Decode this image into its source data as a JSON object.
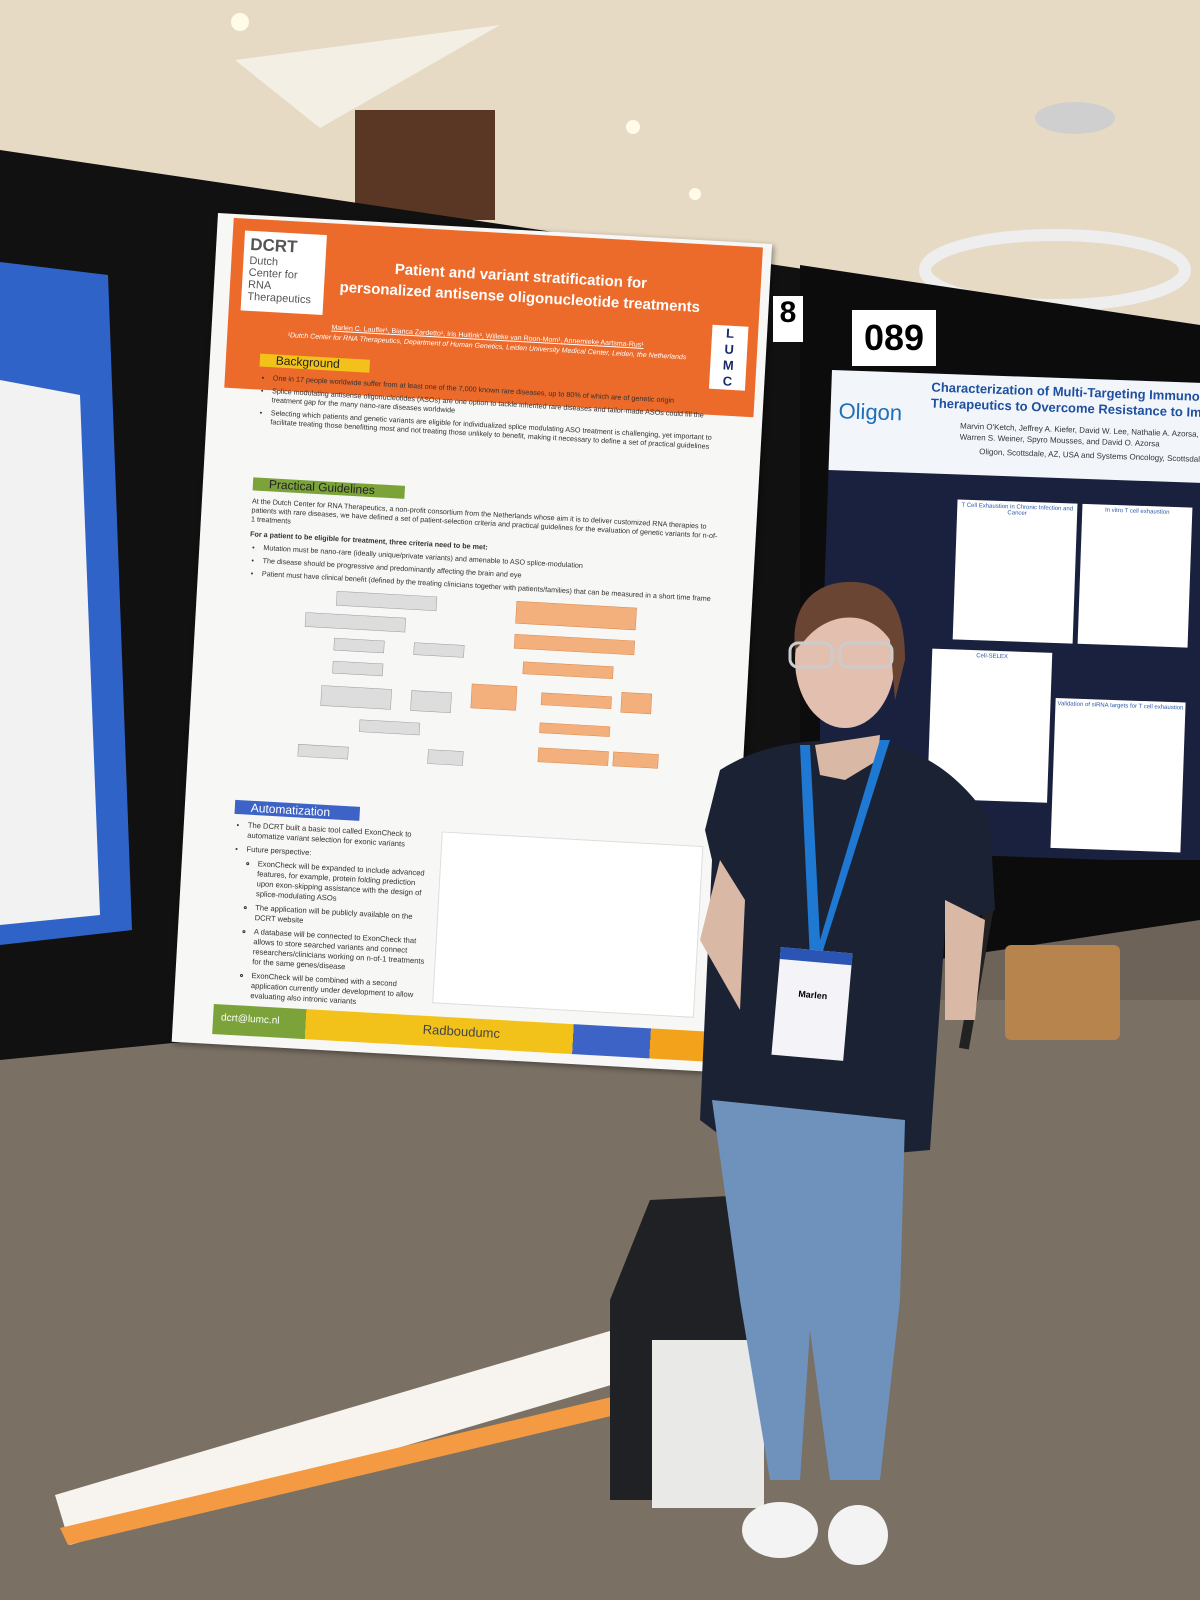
{
  "left_poster": {
    "logo": [
      "DCRT",
      "Dutch",
      "Center for",
      "RNA",
      "Therapeutics"
    ],
    "title": [
      "Patient and variant stratification for",
      "personalized antisense oligonucleotide treatments"
    ],
    "authors": "Marlen C. Lauffer¹, Bianca Zardetto¹, Iris Huitink¹, Willeke van Roon-Mom¹, Annemieke Aartsma-Rus¹",
    "affiliation": "¹Dutch Center for RNA Therapeutics, Department of Human Genetics, Leiden University Medical Center, Leiden, the Netherlands",
    "institute_logo": [
      "L",
      "U",
      "M",
      "C"
    ],
    "background": {
      "heading": "Background",
      "bullets": [
        "One in 17 people worldwide suffer from at least one of the 7,000 known rare diseases, up to 80% of which are of genetic origin",
        "Splice modulating antisense oligonucleotides (ASOs) are one option to tackle inherited rare diseases and tailor-made ASOs could fill the treatment gap for the many nano-rare diseases worldwide",
        "Selecting which patients and genetic variants are eligible for individualized splice modulating ASO treatment is challenging, yet important to facilitate treating those benefitting most and not treating those unlikely to benefit, making it necessary to define a set of practical guidelines"
      ]
    },
    "guidelines": {
      "heading": "Practical Guidelines",
      "intro": "At the Dutch Center for RNA Therapeutics, a non-profit consortium from the Netherlands whose aim it is to deliver customized RNA therapies to patients with rare diseases, we have defined a set of patient-selection criteria and practical guidelines for the evaluation of genetic variants for n-of-1 treatments",
      "criteria_heading": "For a patient to be eligible for treatment, three criteria need to be met:",
      "bullets": [
        "Mutation must be nano-rare (ideally unique/private variants) and amenable to ASO splice-modulation",
        "The disease should be progressive and predominantly affecting the brain and eye",
        "Patient must have clinical benefit (defined by the treating clinicians together with patients/families) that can be measured in a short time frame"
      ]
    },
    "automatization": {
      "heading": "Automatization",
      "bullets": [
        "The DCRT built a basic tool called ExonCheck to automatize variant selection for exonic variants",
        "Future perspective:"
      ],
      "sub_bullets": [
        "ExonCheck will be expanded to include advanced features, for example, protein folding prediction upon exon-skipping assistance with the design of splice-modulating ASOs",
        "The application will be publicly available on the DCRT website",
        "A database will be connected to ExonCheck that allows to store searched variants and connect researchers/clinicians working on n-of-1 treatments for the same genes/disease",
        "ExonCheck will be combined with a second application currently under development to allow evaluating also intronic variants"
      ]
    },
    "footer": {
      "email": "dcrt@lumc.nl",
      "partner": "Radboudumc"
    }
  },
  "board_numbers": [
    "8",
    "089"
  ],
  "right_poster": {
    "logo": "Oligon",
    "title": [
      "Characterization of Multi-Targeting Immunomodulatory",
      "Therapeutics to Overcome Resistance to Immune Checkpoint"
    ],
    "authors": [
      "Marvin O'Ketch, Jeffrey A. Kiefer, David W. Lee, Nathalie A. Azorsa, Lizette A. Castaño",
      "Warren S. Weiner, Spyro Mousses, and David O. Azorsa"
    ],
    "affiliation": "Oligon, Scottsdale, AZ, USA and Systems Oncology, Scottsdale, AZ, USA",
    "panels": [
      "T Cell Exhaustion in Chronic Infection and Cancer",
      "In vitro T cell exhaustion",
      "Cell-SELEX",
      "Validation of siRNA targets for T cell exhaustion"
    ]
  },
  "badge": {
    "name": "Marlen"
  }
}
